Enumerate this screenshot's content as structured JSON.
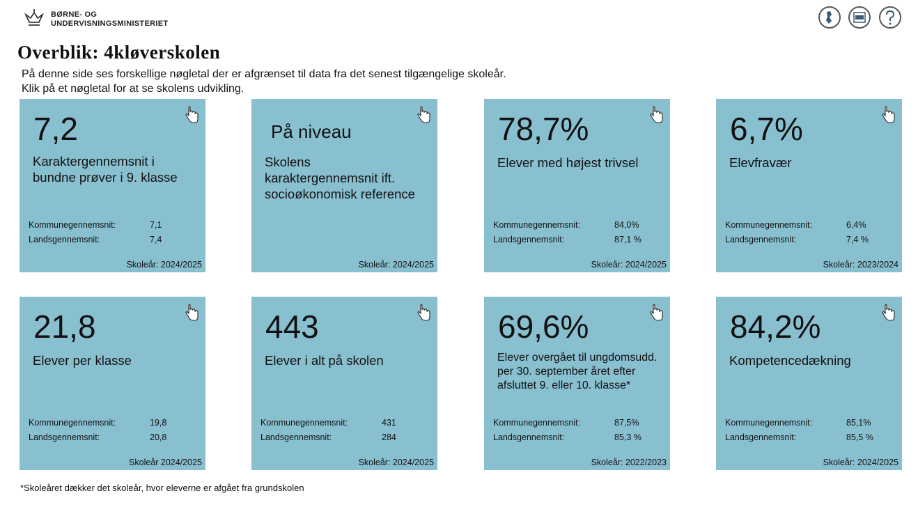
{
  "header": {
    "logo": [
      "BØRNE- OG",
      "UNDERVISNINGSMINISTERIET"
    ]
  },
  "title": "Overblik: 4kløverskolen",
  "description": [
    "På denne side ses forskellige nøgletal der er afgrænset til data fra det senest tilgængelige skoleår.",
    "Klik på et nøgletal for at se skolens udvikling."
  ],
  "cards": [
    {
      "value": "7,2",
      "label": [
        "Karaktergennemsnit i",
        "bundne prøver i 9. klasse"
      ],
      "stats": [
        {
          "label": "Kommunegennemsnit:",
          "value": "7,1"
        },
        {
          "label": "Landsgennemsnit:",
          "value": "7,4"
        }
      ],
      "period": "Skoleår: 2024/2025"
    },
    {
      "value": "På niveau",
      "label": [
        "Skolens",
        "karaktergennemsnit ift.",
        "socioøkonomisk reference"
      ],
      "stats": [],
      "period": "Skoleår: 2024/2025"
    },
    {
      "value": "78,7%",
      "label": [
        "Elever med højest trivsel"
      ],
      "stats": [
        {
          "label": "Kommunegennemsnit:",
          "value": "84,0%"
        },
        {
          "label": "Landsgennemsnit:",
          "value": "87,1 %"
        }
      ],
      "period": "Skoleår: 2024/2025"
    },
    {
      "value": "6,7%",
      "label": [
        "Elevfravær"
      ],
      "stats": [
        {
          "label": "Kommunegennemsnit:",
          "value": "6,4%"
        },
        {
          "label": "Landsgennemsnit:",
          "value": "7,4 %"
        }
      ],
      "period": "Skoleår: 2023/2024"
    },
    {
      "value": "21,8",
      "label": [
        "Elever per klasse"
      ],
      "stats": [
        {
          "label": "Kommunegennemsnit:",
          "value": "19,8"
        },
        {
          "label": "Landsgennemsnit:",
          "value": "20,8"
        }
      ],
      "period": "Skoleår 2024/2025"
    },
    {
      "value": "443",
      "label": [
        "Elever i alt på skolen"
      ],
      "stats": [
        {
          "label": "Kommunegennemsnit:",
          "value": "431"
        },
        {
          "label": "Landsgennemsnit:",
          "value": "284"
        }
      ],
      "period": "Skoleår: 2024/2025"
    },
    {
      "value": "69,6%",
      "label": [
        "Elever overgået til ungdomsudd.",
        "per 30. september året efter",
        "afsluttet 9. eller 10. klasse*"
      ],
      "stats": [
        {
          "label": "Kommunegennemsnit:",
          "value": "87,5%"
        },
        {
          "label": "Landsgennemsnit:",
          "value": "85,3 %"
        }
      ],
      "period": "Skoleår: 2022/2023"
    },
    {
      "value": "84,2%",
      "label": [
        "Kompetencedækning"
      ],
      "stats": [
        {
          "label": "Kommunegennemsnit:",
          "value": "85,1%"
        },
        {
          "label": "Landsgennemsnit:",
          "value": "85,5 %"
        }
      ],
      "period": "Skoleår: 2024/2025"
    }
  ],
  "footnote": "*Skoleåret dækker det skoleår, hvor eleverne er afgået fra grundskolen"
}
